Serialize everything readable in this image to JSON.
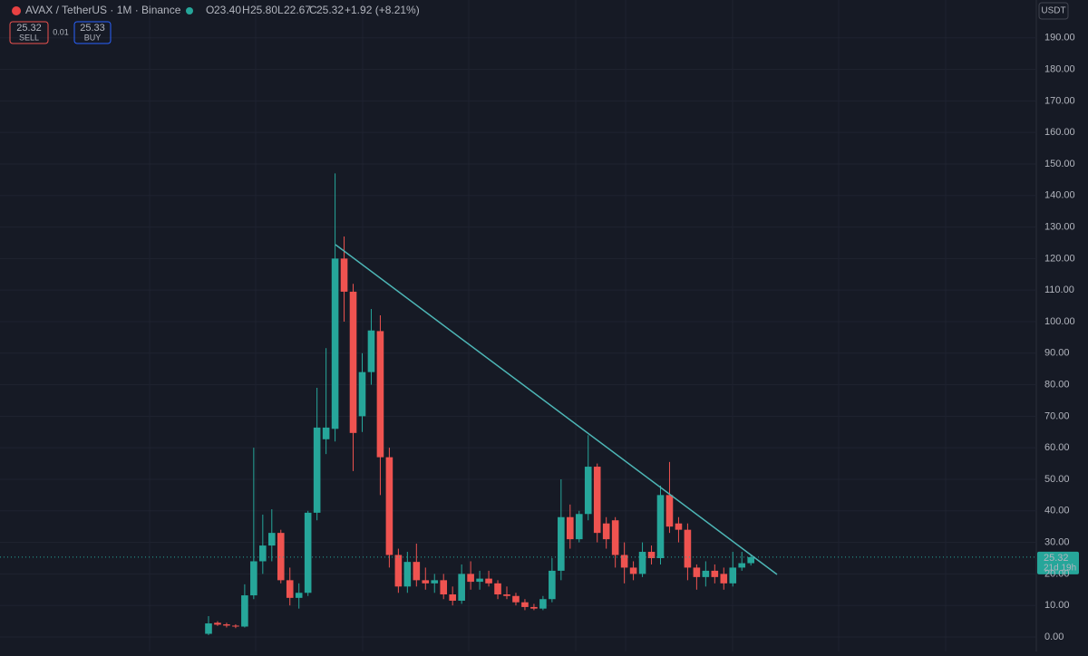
{
  "header": {
    "symbol": "AVAX / TetherUS · 1M · Binance",
    "o_label": "O",
    "open": "23.40",
    "h_label": "H",
    "high": "25.80",
    "l_label": "L",
    "low": "22.67",
    "c_label": "C",
    "close": "25.32",
    "change": "+1.92 (+8.21%)",
    "sell_price": "25.32",
    "sell": "SELL",
    "spread": "0.01",
    "buy_price": "25.33",
    "buy": "BUY",
    "currency": "USDT"
  },
  "price_tag": {
    "price": "25.32",
    "countdown": "21d 19h"
  },
  "chart_data": {
    "type": "candlestick",
    "up_color": "#26a69a",
    "down_color": "#ef5350",
    "grid": true,
    "ylim": [
      -4.6,
      202
    ],
    "yticks": [
      {
        "value": 0,
        "label": "0.00"
      },
      {
        "value": 10,
        "label": "10.00"
      },
      {
        "value": 20,
        "label": "20.00"
      },
      {
        "value": 30,
        "label": "30.00"
      },
      {
        "value": 40,
        "label": "40.00"
      },
      {
        "value": 50,
        "label": "50.00"
      },
      {
        "value": 60,
        "label": "60.00"
      },
      {
        "value": 70,
        "label": "70.00"
      },
      {
        "value": 80,
        "label": "80.00"
      },
      {
        "value": 90,
        "label": "90.00"
      },
      {
        "value": 100,
        "label": "100.00"
      },
      {
        "value": 110,
        "label": "110.00"
      },
      {
        "value": 120,
        "label": "120.00"
      },
      {
        "value": 130,
        "label": "130.00"
      },
      {
        "value": 140,
        "label": "140.00"
      },
      {
        "value": 150,
        "label": "150.00"
      },
      {
        "value": 160,
        "label": "160.00"
      },
      {
        "value": 170,
        "label": "170.00"
      },
      {
        "value": 180,
        "label": "180.00"
      },
      {
        "value": 190,
        "label": "190.00"
      }
    ],
    "open": [
      1.0,
      4.5,
      4.0,
      3.6,
      3.3,
      13.2,
      24,
      29,
      33,
      18,
      12.4,
      14,
      39.4,
      62.7,
      66,
      120,
      109.5,
      70,
      84,
      97,
      57,
      26,
      16,
      23.8,
      18,
      17,
      18,
      13.5,
      11.5,
      20,
      17.5,
      18.5,
      17,
      13.5,
      13,
      11,
      9.5,
      9,
      12,
      21,
      38,
      31,
      39,
      54,
      36,
      37,
      26,
      22,
      20,
      27,
      25,
      45,
      36,
      34,
      22,
      19,
      21,
      20,
      17,
      22,
      23.4
    ],
    "high": [
      6.6,
      5,
      4.5,
      4,
      16.7,
      60,
      38.8,
      40.5,
      34,
      22,
      17,
      40,
      79,
      91.6,
      147,
      127,
      112,
      90,
      104,
      102,
      60,
      28,
      27,
      29.6,
      22,
      20,
      20,
      16,
      23,
      24,
      21,
      21,
      18,
      16,
      14,
      12,
      10.5,
      13,
      25,
      50,
      42,
      40,
      64,
      55,
      38,
      38,
      30,
      24,
      30,
      29,
      48,
      55.5,
      38,
      36,
      23,
      24,
      23,
      22,
      27,
      27,
      25.8
    ],
    "low": [
      0.6,
      3.5,
      3,
      2.8,
      3,
      12,
      20,
      24,
      17,
      10,
      9,
      13,
      37,
      58,
      62,
      100,
      52.6,
      65,
      80,
      45,
      22,
      14,
      14,
      16,
      15,
      14,
      12,
      10,
      10.5,
      15,
      15,
      16,
      12,
      12,
      10,
      8.5,
      8.5,
      8.5,
      11,
      18,
      28,
      30,
      37,
      30,
      28,
      22,
      17,
      18,
      19,
      23,
      23,
      33,
      30,
      18,
      15,
      16,
      17,
      15,
      16,
      21,
      22.67
    ],
    "close": [
      4.3,
      3.9,
      3.6,
      3.3,
      13.2,
      24,
      29,
      33,
      18,
      12.4,
      14,
      39.4,
      66.4,
      66.4,
      120,
      109.5,
      64.7,
      84,
      97.2,
      57,
      26,
      16,
      23.8,
      18,
      17,
      18,
      13.5,
      11.5,
      20,
      17.5,
      18.5,
      17,
      13.5,
      13,
      11,
      9.5,
      9,
      12,
      21,
      38,
      31,
      39,
      54,
      33,
      31,
      26,
      22,
      20,
      27,
      25,
      45,
      35,
      34,
      22,
      19,
      21,
      19,
      17,
      22,
      23.4,
      25.32
    ]
  }
}
